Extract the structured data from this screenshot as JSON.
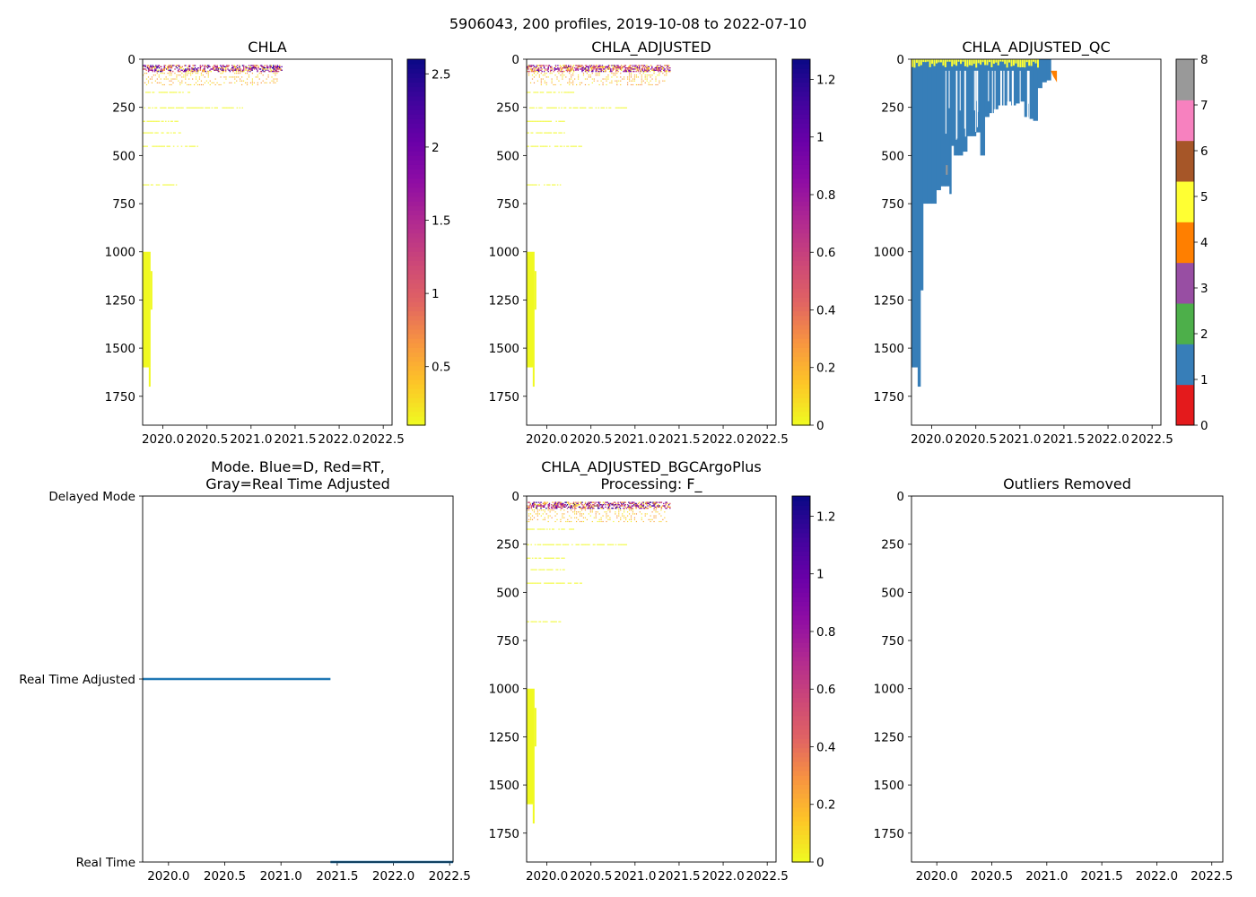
{
  "figure": {
    "suptitle": "5906043, 200 profiles, 2019-10-08 to 2022-07-10"
  },
  "colors": {
    "plasma_r": [
      "#f0f921",
      "#fdc527",
      "#f89540",
      "#e16462",
      "#cc4778",
      "#b12a90",
      "#8f0da4",
      "#6a00a8",
      "#41049d",
      "#0d0887"
    ],
    "qc": [
      "#e41a1c",
      "#377eb8",
      "#4daf4a",
      "#984ea3",
      "#ff7f00",
      "#ffff33",
      "#a65628",
      "#f781bf",
      "#999999"
    ],
    "mode_line": "#1f77b4",
    "qc_bad": "#999999"
  },
  "chart_data": [
    {
      "id": "chla",
      "type": "heatmap",
      "title": "CHLA",
      "xlim": [
        2019.77,
        2022.6
      ],
      "xticks": [
        "2020.0",
        "2020.5",
        "2021.0",
        "2021.5",
        "2022.0",
        "2022.5"
      ],
      "xtick_values": [
        2020.0,
        2020.5,
        2021.0,
        2021.5,
        2022.0,
        2022.5
      ],
      "ylim": [
        1900,
        0
      ],
      "yticks": [
        "0",
        "250",
        "500",
        "750",
        "1000",
        "1250",
        "1500",
        "1750"
      ],
      "ytick_values": [
        0,
        250,
        500,
        750,
        1000,
        1250,
        1500,
        1750
      ],
      "colorbar": {
        "cmap": "plasma_r",
        "range": [
          0.1,
          2.6
        ],
        "ticks": [
          "0.5",
          "1.0",
          "1.5",
          "2.0",
          "2.5"
        ],
        "tick_values": [
          0.5,
          1.0,
          1.5,
          2.0,
          2.5
        ]
      },
      "data_extent": {
        "t_start": 2019.77,
        "t_end": 2021.35,
        "deep_block": [
          2019.77,
          2019.86,
          1000,
          1600
        ]
      }
    },
    {
      "id": "chla_adj",
      "type": "heatmap",
      "title": "CHLA_ADJUSTED",
      "xlim": [
        2019.77,
        2022.6
      ],
      "xticks": [
        "2020.0",
        "2020.5",
        "2021.0",
        "2021.5",
        "2022.0",
        "2022.5"
      ],
      "xtick_values": [
        2020.0,
        2020.5,
        2021.0,
        2021.5,
        2022.0,
        2022.5
      ],
      "ylim": [
        1900,
        0
      ],
      "yticks": [
        "0",
        "250",
        "500",
        "750",
        "1000",
        "1250",
        "1500",
        "1750"
      ],
      "ytick_values": [
        0,
        250,
        500,
        750,
        1000,
        1250,
        1500,
        1750
      ],
      "colorbar": {
        "cmap": "plasma_r",
        "range": [
          0.0,
          1.27
        ],
        "ticks": [
          "0.0",
          "0.2",
          "0.4",
          "0.6",
          "0.8",
          "1.0",
          "1.2"
        ],
        "tick_values": [
          0.0,
          0.2,
          0.4,
          0.6,
          0.8,
          1.0,
          1.2
        ]
      },
      "data_extent": {
        "t_start": 2019.77,
        "t_end": 2021.4,
        "deep_block": [
          2019.77,
          2019.86,
          1000,
          1600
        ]
      }
    },
    {
      "id": "chla_adj_qc",
      "type": "heatmap",
      "title": "CHLA_ADJUSTED_QC",
      "xlim": [
        2019.77,
        2022.6
      ],
      "xticks": [
        "2020.0",
        "2020.5",
        "2021.0",
        "2021.5",
        "2022.0",
        "2022.5"
      ],
      "xtick_values": [
        2020.0,
        2020.5,
        2021.0,
        2021.5,
        2022.0,
        2022.5
      ],
      "ylim": [
        1900,
        0
      ],
      "yticks": [
        "0",
        "250",
        "500",
        "750",
        "1000",
        "1250",
        "1500",
        "1750"
      ],
      "ytick_values": [
        0,
        250,
        500,
        750,
        1000,
        1250,
        1500,
        1750
      ],
      "colorbar": {
        "cmap": "qc",
        "range": [
          0,
          8
        ],
        "ticks": [
          "0",
          "1",
          "2",
          "3",
          "4",
          "5",
          "6",
          "7",
          "8"
        ],
        "tick_values": [
          0,
          1,
          2,
          3,
          4,
          5,
          6,
          7,
          8
        ]
      },
      "profile_bottoms": [
        [
          2019.77,
          1600
        ],
        [
          2019.84,
          1700
        ],
        [
          2019.87,
          1200
        ],
        [
          2019.9,
          750
        ],
        [
          2019.95,
          750
        ],
        [
          2020.0,
          750
        ],
        [
          2020.05,
          680
        ],
        [
          2020.1,
          660
        ],
        [
          2020.15,
          660
        ],
        [
          2020.2,
          700
        ],
        [
          2020.22,
          450
        ],
        [
          2020.25,
          500
        ],
        [
          2020.3,
          500
        ],
        [
          2020.35,
          480
        ],
        [
          2020.4,
          400
        ],
        [
          2020.45,
          400
        ],
        [
          2020.5,
          380
        ],
        [
          2020.55,
          500
        ],
        [
          2020.6,
          300
        ],
        [
          2020.65,
          280
        ],
        [
          2020.7,
          260
        ],
        [
          2020.75,
          240
        ],
        [
          2020.8,
          240
        ],
        [
          2020.85,
          220
        ],
        [
          2020.9,
          240
        ],
        [
          2020.95,
          230
        ],
        [
          2021.0,
          220
        ],
        [
          2021.05,
          300
        ],
        [
          2021.1,
          310
        ],
        [
          2021.15,
          320
        ],
        [
          2021.2,
          150
        ],
        [
          2021.25,
          120
        ],
        [
          2021.3,
          110
        ],
        [
          2021.35,
          100
        ]
      ],
      "surface_flag": {
        "t_start": 2019.77,
        "t_end": 2021.2,
        "depth": 40,
        "value": 5
      },
      "tail_flag": {
        "t_start": 2021.35,
        "t_end": 2021.42,
        "depth": 120,
        "value": 4
      }
    },
    {
      "id": "mode",
      "type": "line",
      "title_lines": [
        "Mode. Blue=D, Red=RT,",
        "Gray=Real Time Adjusted"
      ],
      "xlim": [
        2019.77,
        2022.53
      ],
      "xticks": [
        "2020.0",
        "2020.5",
        "2021.0",
        "2021.5",
        "2022.0",
        "2022.5"
      ],
      "xtick_values": [
        2020.0,
        2020.5,
        2021.0,
        2021.5,
        2022.0,
        2022.5
      ],
      "categories": [
        "Delayed Mode",
        "Real Time Adjusted",
        "Real Time"
      ],
      "category_values": [
        2,
        1,
        0
      ],
      "series": [
        {
          "name": "Real Time Adjusted",
          "x": [
            2019.77,
            2021.44
          ],
          "y": [
            1,
            1
          ]
        },
        {
          "name": "Real Time",
          "x": [
            2021.44,
            2022.53
          ],
          "y": [
            0,
            0
          ]
        }
      ]
    },
    {
      "id": "bgc_plus",
      "type": "heatmap",
      "title_lines": [
        "CHLA_ADJUSTED_BGCArgoPlus",
        "Processing: F_"
      ],
      "xlim": [
        2019.77,
        2022.6
      ],
      "xticks": [
        "2020.0",
        "2020.5",
        "2021.0",
        "2021.5",
        "2022.0",
        "2022.5"
      ],
      "xtick_values": [
        2020.0,
        2020.5,
        2021.0,
        2021.5,
        2022.0,
        2022.5
      ],
      "ylim": [
        1900,
        0
      ],
      "yticks": [
        "0",
        "250",
        "500",
        "750",
        "1000",
        "1250",
        "1500",
        "1750"
      ],
      "ytick_values": [
        0,
        250,
        500,
        750,
        1000,
        1250,
        1500,
        1750
      ],
      "colorbar": {
        "cmap": "plasma_r",
        "range": [
          0.0,
          1.27
        ],
        "ticks": [
          "0.0",
          "0.2",
          "0.4",
          "0.6",
          "0.8",
          "1.0",
          "1.2"
        ],
        "tick_values": [
          0.0,
          0.2,
          0.4,
          0.6,
          0.8,
          1.0,
          1.2
        ]
      },
      "data_extent": {
        "t_start": 2019.77,
        "t_end": 2021.4,
        "deep_block": [
          2019.77,
          2019.86,
          1000,
          1600
        ]
      }
    },
    {
      "id": "outliers",
      "type": "scatter",
      "title": "Outliers Removed",
      "xlim": [
        2019.77,
        2022.6
      ],
      "xticks": [
        "2020.0",
        "2020.5",
        "2021.0",
        "2021.5",
        "2022.0",
        "2022.5"
      ],
      "xtick_values": [
        2020.0,
        2020.5,
        2021.0,
        2021.5,
        2022.0,
        2022.5
      ],
      "ylim": [
        1900,
        0
      ],
      "yticks": [
        "0",
        "250",
        "500",
        "750",
        "1000",
        "1250",
        "1500",
        "1750"
      ],
      "ytick_values": [
        0,
        250,
        500,
        750,
        1000,
        1250,
        1500,
        1750
      ],
      "points": []
    }
  ]
}
